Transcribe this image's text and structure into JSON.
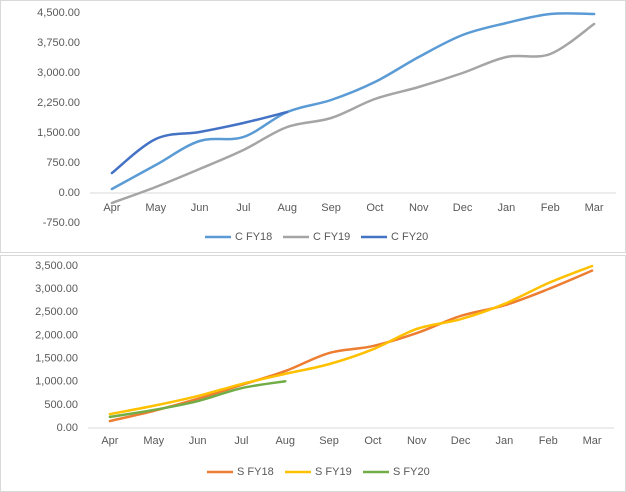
{
  "chart_data": [
    {
      "type": "line",
      "categories": [
        "Apr",
        "May",
        "Jun",
        "Jul",
        "Aug",
        "Sep",
        "Oct",
        "Nov",
        "Dec",
        "Jan",
        "Feb",
        "Mar"
      ],
      "series": [
        {
          "name": "C FY18",
          "color": "#5b9bd5",
          "values": [
            100,
            700,
            1300,
            1400,
            2025,
            2325,
            2775,
            3400,
            3950,
            4250,
            4475,
            4475
          ]
        },
        {
          "name": "C FY19",
          "color": "#a5a5a5",
          "values": [
            -250,
            150,
            600,
            1075,
            1650,
            1875,
            2350,
            2650,
            3000,
            3400,
            3475,
            4225
          ]
        },
        {
          "name": "C FY20",
          "color": "#4472c4",
          "values": [
            500,
            1350,
            1525,
            1750,
            2025,
            null,
            null,
            null,
            null,
            null,
            null,
            null
          ]
        }
      ],
      "ylim": [
        -750,
        4500
      ],
      "yticks": [
        {
          "value": -750,
          "label": "-750.00"
        },
        {
          "value": 0,
          "label": "0.00"
        },
        {
          "value": 750,
          "label": "750.00"
        },
        {
          "value": 1500,
          "label": "1,500.00"
        },
        {
          "value": 2250,
          "label": "2,250.00"
        },
        {
          "value": 3000,
          "label": "3,000.00"
        },
        {
          "value": 3750,
          "label": "3,750.00"
        },
        {
          "value": 4500,
          "label": "4,500.00"
        }
      ],
      "legend": "bottom"
    },
    {
      "type": "line",
      "categories": [
        "Apr",
        "May",
        "Jun",
        "Jul",
        "Aug",
        "Sep",
        "Oct",
        "Nov",
        "Dec",
        "Jan",
        "Feb",
        "Mar"
      ],
      "series": [
        {
          "name": "S FY18",
          "color": "#ed7d31",
          "values": [
            150,
            370,
            630,
            930,
            1230,
            1620,
            1770,
            2050,
            2420,
            2650,
            3000,
            3400
          ]
        },
        {
          "name": "S FY19",
          "color": "#ffc000",
          "values": [
            300,
            480,
            690,
            950,
            1170,
            1380,
            1700,
            2140,
            2350,
            2680,
            3130,
            3500
          ]
        },
        {
          "name": "S FY20",
          "color": "#70ad47",
          "values": [
            240,
            390,
            580,
            860,
            1010,
            null,
            null,
            null,
            null,
            null,
            null,
            null
          ]
        }
      ],
      "ylim": [
        0,
        3500
      ],
      "yticks": [
        {
          "value": 0,
          "label": "0.00"
        },
        {
          "value": 500,
          "label": "500.00"
        },
        {
          "value": 1000,
          "label": "1,000.00"
        },
        {
          "value": 1500,
          "label": "1,500.00"
        },
        {
          "value": 2000,
          "label": "2,000.00"
        },
        {
          "value": 2500,
          "label": "2,500.00"
        },
        {
          "value": 3000,
          "label": "3,000.00"
        },
        {
          "value": 3500,
          "label": "3,500.00"
        }
      ],
      "legend": "bottom"
    }
  ]
}
